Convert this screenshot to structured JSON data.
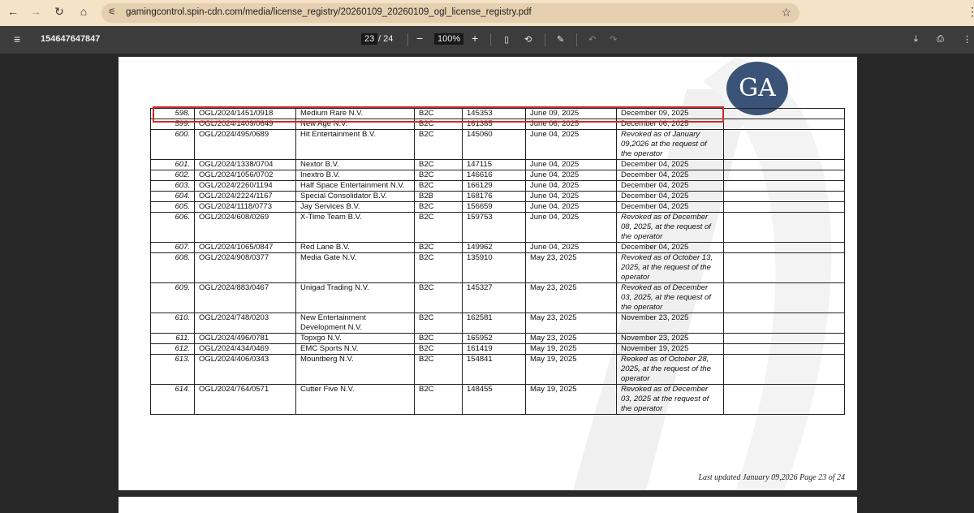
{
  "browser": {
    "url": "gamingcontrol.spin-cdn.com/media/license_registry/20260109_20260109_ogl_license_registry.pdf"
  },
  "pdf_toolbar": {
    "title": "154647647847",
    "current_page": "23",
    "total_pages": "/ 24",
    "zoom": "100%"
  },
  "logo_text": "GA",
  "table": {
    "rows": [
      [
        "598.",
        "OGL/2024/1451/0918",
        "Medium Rare N.V.",
        "B2C",
        "145353",
        "June 09, 2025",
        "December 09, 2025",
        ""
      ],
      [
        "599.",
        "OGL/2024/1409/0649",
        "New Age N.V.",
        "B2C",
        "161385",
        "June 06, 2025",
        "December 06, 2025",
        ""
      ],
      [
        "600.",
        "OGL/2024/495/0689",
        "Hit Entertainment B.V.",
        "B2C",
        "145060",
        "June 04, 2025",
        "Revoked as of January 09,2026 at the request of the operator",
        ""
      ],
      [
        "601.",
        "OGL/2024/1338/0704",
        "Nextor B.V.",
        "B2C",
        "147115",
        "June 04, 2025",
        "December 04, 2025",
        ""
      ],
      [
        "602.",
        "OGL/2024/1056/0702",
        "Inextro B.V.",
        "B2C",
        "146616",
        "June 04, 2025",
        "December 04, 2025",
        ""
      ],
      [
        "603.",
        "OGL/2024/2260/1194",
        "Half Space Entertainment N.V.",
        "B2C",
        "166129",
        "June 04, 2025",
        "December 04, 2025",
        ""
      ],
      [
        "604.",
        "OGL/2024/2224/1167",
        "Special Consolidator B.V.",
        "B2B",
        "168176",
        "June 04, 2025",
        "December 04, 2025",
        ""
      ],
      [
        "605.",
        "OGL/2024/1118/0773",
        "Jay Services B.V.",
        "B2C",
        "156659",
        "June 04, 2025",
        "December 04, 2025",
        ""
      ],
      [
        "606.",
        "OGL/2024/608/0269",
        "X-Time Team B.V.",
        "B2C",
        "159753",
        "June 04, 2025",
        "Revoked as of December 08, 2025, at the request of the operator",
        ""
      ],
      [
        "607.",
        "OGL/2024/1065/0847",
        "Red Lane B.V.",
        "B2C",
        "149962",
        "June 04, 2025",
        "December 04, 2025",
        ""
      ],
      [
        "608.",
        "OGL/2024/908/0377",
        "Media Gate N.V.",
        "B2C",
        "135910",
        "May 23, 2025",
        "Revoked as of October 13, 2025, at the request of the operator",
        ""
      ],
      [
        "609.",
        "OGL/2024/883/0467",
        "Unigad Trading N.V.",
        "B2C",
        "145327",
        "May 23, 2025",
        "Revoked as of December 03, 2025, at the request of the operator",
        ""
      ],
      [
        "610.",
        "OGL/2024/748/0203",
        "New Entertainment Development N.V.",
        "B2C",
        "162581",
        "May 23, 2025",
        "November 23, 2025",
        ""
      ],
      [
        "611.",
        "OGL/2024/496/0781",
        "Topxgo N.V.",
        "B2C",
        "165952",
        "May 23, 2025",
        "November 23, 2025",
        ""
      ],
      [
        "612.",
        "OGL/2024/434/0469",
        "EMC Sports N.V.",
        "B2C",
        "161419",
        "May 19, 2025",
        "November 19, 2025",
        ""
      ],
      [
        "613.",
        "OGL/2024/406/0343",
        "Mountberg N.V.",
        "B2C",
        "154841",
        "May 19, 2025",
        "Reoked as of October 28, 2025, at the request of the operator",
        ""
      ],
      [
        "614.",
        "OGL/2024/764/0571",
        "Cutter Five N.V.",
        "B2C",
        "148455",
        "May 19, 2025",
        "Revoked as  of December 03, 2025 at the request of the operator",
        ""
      ]
    ]
  },
  "footer": "Last updated January 09,2026 Page 23 of 24"
}
